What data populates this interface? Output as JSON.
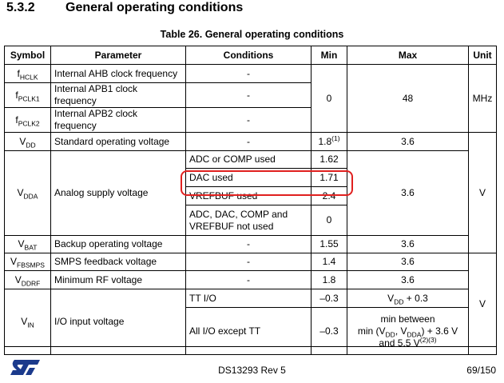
{
  "section": {
    "number": "5.3.2",
    "title": "General operating conditions"
  },
  "table": {
    "caption": "Table 26. General operating conditions",
    "headers": [
      "Symbol",
      "Parameter",
      "Conditions",
      "Min",
      "Max",
      "Unit"
    ],
    "rows": [
      {
        "symbol": [
          {
            "text": "f"
          },
          {
            "sub": "HCLK"
          }
        ],
        "parameter": "Internal AHB clock frequency",
        "conditions": "-",
        "min": 0,
        "max": 48,
        "unit": "MHz"
      },
      {
        "symbol": [
          {
            "text": "f"
          },
          {
            "sub": "PCLK1"
          }
        ],
        "parameter": "Internal APB1 clock frequency",
        "conditions": "-"
      },
      {
        "symbol": [
          {
            "text": "f"
          },
          {
            "sub": "PCLK2"
          }
        ],
        "parameter": "Internal APB2 clock frequency",
        "conditions": "-"
      },
      {
        "symbol": [
          {
            "text": "V"
          },
          {
            "sub": "DD"
          }
        ],
        "parameter": "Standard operating voltage",
        "conditions": "-",
        "min": [
          {
            "text": "1.8"
          },
          {
            "sup": "(1)"
          }
        ],
        "max": 3.6,
        "unit": "V"
      },
      {
        "symbol": [
          {
            "text": "V"
          },
          {
            "sub": "DDA"
          }
        ],
        "parameter": "Analog supply voltage",
        "conditions": "ADC or COMP used",
        "min": 1.62,
        "max": 3.6
      },
      {
        "conditions": "DAC used",
        "min": 1.71
      },
      {
        "conditions": "VREFBUF used",
        "min": 2.4
      },
      {
        "conditions": "ADC, DAC, COMP and VREFBUF not used",
        "min": 0
      },
      {
        "symbol": [
          {
            "text": "V"
          },
          {
            "sub": "BAT"
          }
        ],
        "parameter": "Backup operating voltage",
        "conditions": "-",
        "min": 1.55,
        "max": 3.6
      },
      {
        "symbol": [
          {
            "text": "V"
          },
          {
            "sub": "FBSMPS"
          }
        ],
        "parameter": "SMPS feedback voltage",
        "conditions": "-",
        "min": 1.4,
        "max": 3.6,
        "unit": "V"
      },
      {
        "symbol": [
          {
            "text": "V"
          },
          {
            "sub": "DDRF"
          }
        ],
        "parameter": "Minimum RF voltage",
        "conditions": "-",
        "min": 1.8,
        "max": 3.6
      },
      {
        "symbol": [
          {
            "text": "V"
          },
          {
            "sub": "IN"
          }
        ],
        "parameter": "I/O input voltage",
        "conditions": "TT I/O",
        "min": "–0.3",
        "max": [
          {
            "text": "V"
          },
          {
            "sub": "DD"
          },
          {
            "text": " + 0.3"
          }
        ]
      },
      {
        "conditions": "All I/O except TT",
        "min": "–0.3",
        "max": [
          [
            {
              "text": "min between"
            }
          ],
          [
            {
              "text": "min (V"
            },
            {
              "sub": "DD"
            },
            {
              "text": ", V"
            },
            {
              "sub": "DDA"
            },
            {
              "text": ") + 3.6 V"
            }
          ],
          [
            {
              "text": "and 5.5 V"
            },
            {
              "sup": "(2)(3)"
            }
          ]
        ]
      }
    ]
  },
  "footer": {
    "document": "DS13293 Rev 5",
    "page": "69/150"
  }
}
